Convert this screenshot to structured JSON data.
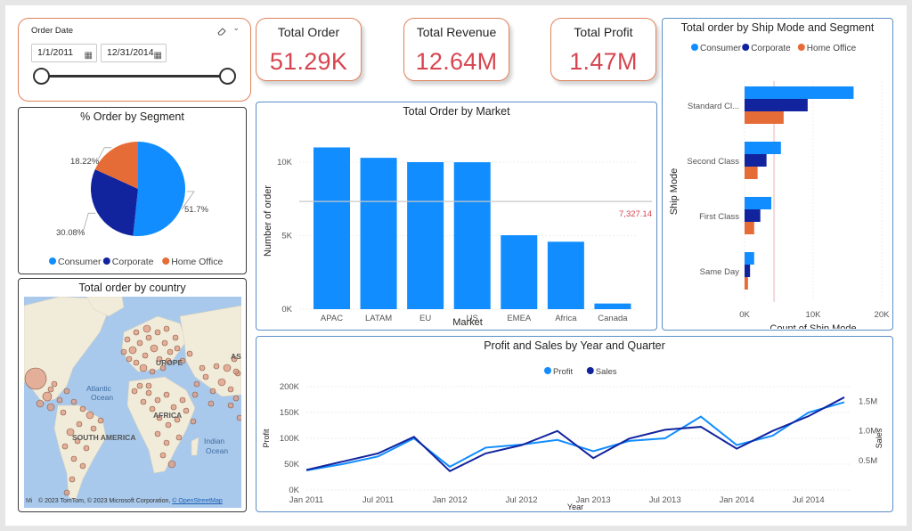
{
  "slicer": {
    "title": "Order Date",
    "start": "1/1/2011",
    "end": "12/31/2014"
  },
  "kpis": {
    "total_order": {
      "label": "Total Order",
      "value": "51.29K"
    },
    "total_revenue": {
      "label": "Total Revenue",
      "value": "12.64M"
    },
    "total_profit": {
      "label": "Total Profit",
      "value": "1.47M"
    }
  },
  "colors": {
    "consumer": "#118DFF",
    "corporate": "#12239E",
    "home_office": "#E66C37",
    "accent": "#D64550",
    "bar": "#118DFF"
  },
  "map": {
    "title": "Total order by country",
    "labels": {
      "europe": "UROPE",
      "asia": "ASI",
      "atlantic1": "Atlantic",
      "atlantic2": "Ocean",
      "africa": "AFRICA",
      "south_america": "SOUTH AMERICA",
      "indian1": "Indian",
      "indian2": "Ocean"
    },
    "attribution_prefix": "© 2023 TomTom, © 2023 Microsoft Corporation, ",
    "attribution_link": "© OpenStreetMap",
    "logo": "Mi"
  },
  "chart_data": [
    {
      "id": "segment",
      "type": "pie",
      "title": "% Order by Segment",
      "legend_position": "bottom",
      "slices": [
        {
          "name": "Consumer",
          "value": 51.7,
          "label": "51.7%"
        },
        {
          "name": "Corporate",
          "value": 30.08,
          "label": "30.08%"
        },
        {
          "name": "Home Office",
          "value": 18.22,
          "label": "18.22%"
        }
      ]
    },
    {
      "id": "market",
      "type": "bar",
      "title": "Total Order by Market",
      "xlabel": "Market",
      "ylabel": "Number of order",
      "categories": [
        "APAC",
        "LATAM",
        "EU",
        "US",
        "EMEA",
        "Africa",
        "Canada"
      ],
      "values": [
        11002,
        10294,
        10000,
        9994,
        5029,
        4587,
        384
      ],
      "ylim": [
        0,
        12000
      ],
      "yticks": [
        {
          "v": 0,
          "t": "0K"
        },
        {
          "v": 5000,
          "t": "5K"
        },
        {
          "v": 10000,
          "t": "10K"
        }
      ],
      "average_line": {
        "value": 7327.14,
        "label": "7,327.14"
      }
    },
    {
      "id": "shipmode",
      "type": "bar",
      "orientation": "horizontal",
      "title": "Total order by Ship Mode and Segment",
      "xlabel": "Count of Ship Mode",
      "ylabel": "Ship Mode",
      "legend_position": "top-left",
      "categories": [
        "Standard Cl...",
        "Second Class",
        "First Class",
        "Same Day"
      ],
      "series": [
        {
          "name": "Consumer",
          "values": [
            15900,
            5300,
            3900,
            1400
          ]
        },
        {
          "name": "Corporate",
          "values": [
            9200,
            3200,
            2300,
            800
          ]
        },
        {
          "name": "Home Office",
          "values": [
            5700,
            1900,
            1400,
            500
          ]
        }
      ],
      "xlim": [
        0,
        20000
      ],
      "xticks": [
        {
          "v": 0,
          "t": "0K"
        },
        {
          "v": 10000,
          "t": "10K"
        },
        {
          "v": 20000,
          "t": "20K"
        }
      ],
      "reference_line": 4300
    },
    {
      "id": "profit_sales",
      "type": "line",
      "title": "Profit and Sales by Year and Quarter",
      "xlabel": "Year",
      "ylabel": "Profit",
      "y2label": "Sales",
      "legend_position": "top",
      "x": [
        "2011 Q1",
        "2011 Q2",
        "2011 Q3",
        "2011 Q4",
        "2012 Q1",
        "2012 Q2",
        "2012 Q3",
        "2012 Q4",
        "2013 Q1",
        "2013 Q2",
        "2013 Q3",
        "2013 Q4",
        "2014 Q1",
        "2014 Q2",
        "2014 Q3",
        "2014 Q4"
      ],
      "xticks": [
        {
          "i": 0,
          "t": "Jan 2011"
        },
        {
          "i": 2,
          "t": "Jul 2011"
        },
        {
          "i": 4,
          "t": "Jan 2012"
        },
        {
          "i": 6,
          "t": "Jul 2012"
        },
        {
          "i": 8,
          "t": "Jan 2013"
        },
        {
          "i": 10,
          "t": "Jul 2013"
        },
        {
          "i": 12,
          "t": "Jan 2014"
        },
        {
          "i": 14,
          "t": "Jul 2014"
        }
      ],
      "series": [
        {
          "name": "Profit",
          "axis": "left",
          "values": [
            38000,
            50000,
            65000,
            100000,
            45000,
            82000,
            88000,
            97000,
            75000,
            95000,
            100000,
            142000,
            87000,
            105000,
            150000,
            170000
          ]
        },
        {
          "name": "Sales",
          "axis": "right",
          "values": [
            340000,
            480000,
            620000,
            900000,
            320000,
            620000,
            760000,
            1000000,
            540000,
            870000,
            1020000,
            1070000,
            700000,
            1000000,
            1250000,
            1570000
          ]
        }
      ],
      "ylim": [
        0,
        200000
      ],
      "yticks": [
        {
          "v": 0,
          "t": "0K"
        },
        {
          "v": 50000,
          "t": "50K"
        },
        {
          "v": 100000,
          "t": "100K"
        },
        {
          "v": 150000,
          "t": "150K"
        },
        {
          "v": 200000,
          "t": "200K"
        }
      ],
      "y2lim": [
        0,
        1750000
      ],
      "y2ticks": [
        {
          "v": 500000,
          "t": "0.5M"
        },
        {
          "v": 1000000,
          "t": "1.0M"
        },
        {
          "v": 1500000,
          "t": "1.5M"
        }
      ]
    }
  ]
}
